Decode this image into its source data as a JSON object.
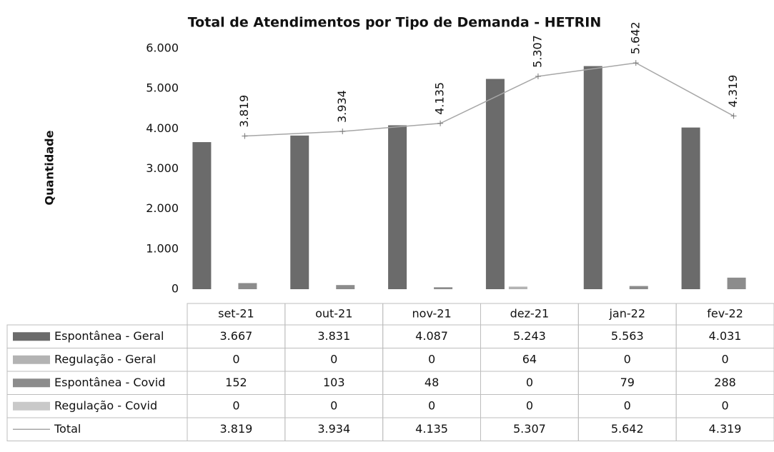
{
  "chart_data": {
    "type": "bar",
    "title": "Total de Atendimentos por Tipo de Demanda - HETRIN",
    "y_label": "Quantidade",
    "categories": [
      "set-21",
      "out-21",
      "nov-21",
      "dez-21",
      "jan-22",
      "fev-22"
    ],
    "series": [
      {
        "name": "Espontânea - Geral",
        "color": "#6b6b6b",
        "values": [
          3667,
          3831,
          4087,
          5243,
          5563,
          4031
        ],
        "value_labels": [
          "3.667",
          "3.831",
          "4.087",
          "5.243",
          "5.563",
          "4.031"
        ]
      },
      {
        "name": "Regulação - Geral",
        "color": "#b3b3b3",
        "values": [
          0,
          0,
          0,
          64,
          0,
          0
        ],
        "value_labels": [
          "0",
          "0",
          "0",
          "64",
          "0",
          "0"
        ]
      },
      {
        "name": "Espontânea - Covid",
        "color": "#8c8c8c",
        "values": [
          152,
          103,
          48,
          0,
          79,
          288
        ],
        "value_labels": [
          "152",
          "103",
          "48",
          "0",
          "79",
          "288"
        ]
      },
      {
        "name": "Regulação - Covid",
        "color": "#c9c9c9",
        "values": [
          0,
          0,
          0,
          0,
          0,
          0
        ],
        "value_labels": [
          "0",
          "0",
          "0",
          "0",
          "0",
          "0"
        ]
      },
      {
        "name": "Total",
        "type": "line",
        "color": "#a6a6a6",
        "values": [
          3819,
          3934,
          4135,
          5307,
          5642,
          4319
        ],
        "value_labels": [
          "3.819",
          "3.934",
          "4.135",
          "5.307",
          "5.642",
          "4.319"
        ]
      }
    ],
    "ylim": [
      0,
      6000
    ],
    "yticks": [
      0,
      {
        "value": 1000,
        "label": "1.000"
      },
      {
        "value": 2000,
        "label": "2.000"
      },
      {
        "value": 3000,
        "label": "3.000"
      },
      {
        "value": 4000,
        "label": "4.000"
      },
      {
        "value": 5000,
        "label": "5.000"
      },
      {
        "value": 6000,
        "label": "6.000"
      }
    ]
  }
}
